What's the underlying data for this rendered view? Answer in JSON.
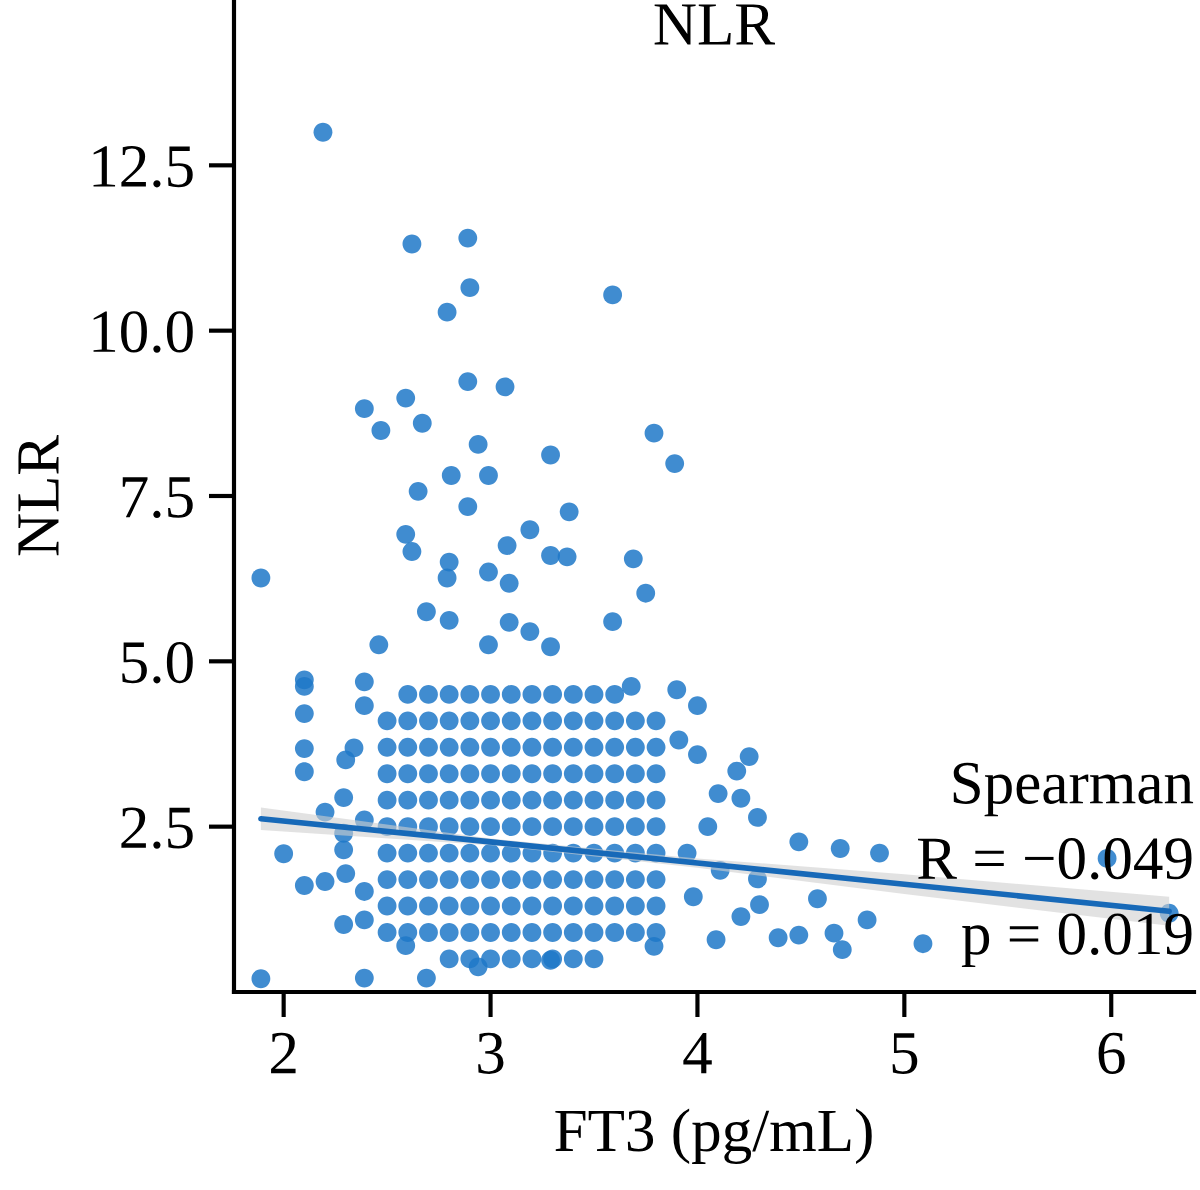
{
  "chart_data": {
    "type": "scatter",
    "title": "NLR",
    "xlabel": "FT3 (pg/mL)",
    "ylabel": "NLR",
    "xlim": [
      1.76,
      6.4
    ],
    "ylim": [
      0,
      15
    ],
    "xticks": [
      2,
      3,
      4,
      5,
      6
    ],
    "yticks": [
      2.5,
      {
        "value": 5,
        "label": "5.0"
      },
      7.5,
      {
        "value": 10,
        "label": "10.0"
      },
      12.5
    ],
    "annotations": [
      "Spearman",
      "R = −0.049",
      "p = 0.019"
    ],
    "series": [
      {
        "color": "#1f78c8",
        "marker": "circle",
        "x": [
          2.8,
          2.9,
          3.0,
          3.1,
          3.2,
          3.3,
          3.4,
          3.5,
          2.5,
          2.6,
          2.7,
          2.8,
          2.9,
          3.0,
          3.1,
          3.2,
          3.3,
          3.4,
          3.5,
          3.6,
          3.7,
          3.8,
          2.5,
          2.6,
          2.7,
          2.8,
          2.9,
          3.0,
          3.1,
          3.2,
          3.3,
          3.4,
          3.5,
          3.6,
          3.7,
          3.8,
          2.5,
          2.6,
          2.7,
          2.8,
          2.9,
          3.0,
          3.1,
          3.2,
          3.3,
          3.4,
          3.5,
          3.6,
          3.7,
          3.8,
          2.5,
          2.6,
          2.7,
          2.8,
          2.9,
          3.0,
          3.1,
          3.2,
          3.3,
          3.4,
          3.5,
          3.6,
          3.7,
          3.8,
          2.5,
          2.6,
          2.7,
          2.8,
          2.9,
          3.0,
          3.1,
          3.2,
          3.3,
          3.4,
          3.5,
          3.6,
          3.7,
          3.8,
          2.5,
          2.6,
          2.7,
          2.8,
          2.9,
          3.0,
          3.1,
          3.2,
          3.3,
          3.4,
          3.5,
          3.6,
          3.7,
          3.8,
          2.5,
          2.6,
          2.7,
          2.8,
          2.9,
          3.0,
          3.1,
          3.2,
          3.3,
          3.4,
          3.5,
          3.6,
          3.7,
          3.8,
          2.5,
          2.6,
          2.7,
          2.8,
          2.9,
          3.0,
          3.1,
          3.2,
          3.3,
          3.4,
          3.5,
          3.6,
          3.7,
          3.8,
          2.5,
          2.6,
          2.7,
          2.8,
          2.9,
          3.0,
          3.1,
          3.2,
          3.3,
          3.4,
          3.5,
          3.6,
          3.7,
          3.8,
          2.6,
          2.7,
          2.8,
          2.9,
          3.0,
          3.1,
          3.2,
          3.3,
          3.4,
          3.5,
          3.6,
          2.19,
          2.62,
          2.89,
          2.9,
          2.79,
          3.59,
          2.89,
          3.07,
          2.39,
          2.59,
          2.47,
          2.67,
          2.94,
          3.29,
          3.79,
          3.89,
          2.65,
          2.81,
          2.99,
          2.89,
          3.38,
          3.19,
          2.59,
          2.62,
          3.08,
          3.29,
          3.37,
          3.69,
          2.8,
          2.79,
          2.99,
          3.09,
          1.89,
          3.75,
          3.59,
          2.46,
          2.69,
          2.8,
          3.09,
          3.19,
          3.29,
          2.99,
          2.1,
          2.1,
          2.1,
          2.1,
          2.1,
          2.3,
          2.34,
          2.2,
          2.29,
          2.0,
          2.1,
          2.2,
          2.3,
          2.29,
          2.39,
          1.89,
          2.39,
          2.69,
          2.39,
          2.39,
          2.29,
          2.29,
          2.39,
          2.94,
          3.68,
          3.9,
          4.0,
          3.91,
          4.0,
          4.25,
          4.19,
          4.21,
          4.29,
          4.49,
          4.69,
          4.88,
          5.98,
          4.58,
          4.3,
          4.21,
          4.39,
          4.49,
          4.66,
          4.7,
          4.82,
          5.09,
          4.09,
          6.28,
          3.98,
          4.11,
          4.29,
          4.05,
          4.1,
          3.95,
          3.29,
          2.59,
          3.79,
          2.39
        ],
        "values": [
          0.5,
          0.5,
          0.5,
          0.5,
          0.5,
          0.5,
          0.5,
          0.5,
          0.9,
          0.9,
          0.9,
          0.9,
          0.9,
          0.9,
          0.9,
          0.9,
          0.9,
          0.9,
          0.9,
          0.9,
          0.9,
          0.9,
          1.3,
          1.3,
          1.3,
          1.3,
          1.3,
          1.3,
          1.3,
          1.3,
          1.3,
          1.3,
          1.3,
          1.3,
          1.3,
          1.3,
          1.7,
          1.7,
          1.7,
          1.7,
          1.7,
          1.7,
          1.7,
          1.7,
          1.7,
          1.7,
          1.7,
          1.7,
          1.7,
          1.7,
          2.1,
          2.1,
          2.1,
          2.1,
          2.1,
          2.1,
          2.1,
          2.1,
          2.1,
          2.1,
          2.1,
          2.1,
          2.1,
          2.1,
          2.5,
          2.5,
          2.5,
          2.5,
          2.5,
          2.5,
          2.5,
          2.5,
          2.5,
          2.5,
          2.5,
          2.5,
          2.5,
          2.5,
          2.9,
          2.9,
          2.9,
          2.9,
          2.9,
          2.9,
          2.9,
          2.9,
          2.9,
          2.9,
          2.9,
          2.9,
          2.9,
          2.9,
          3.3,
          3.3,
          3.3,
          3.3,
          3.3,
          3.3,
          3.3,
          3.3,
          3.3,
          3.3,
          3.3,
          3.3,
          3.3,
          3.3,
          3.7,
          3.7,
          3.7,
          3.7,
          3.7,
          3.7,
          3.7,
          3.7,
          3.7,
          3.7,
          3.7,
          3.7,
          3.7,
          3.7,
          4.1,
          4.1,
          4.1,
          4.1,
          4.1,
          4.1,
          4.1,
          4.1,
          4.1,
          4.1,
          4.1,
          4.1,
          4.1,
          4.1,
          4.5,
          4.5,
          4.5,
          4.5,
          4.5,
          4.5,
          4.5,
          4.5,
          4.5,
          4.5,
          4.5,
          13.0,
          11.31,
          11.4,
          10.65,
          10.28,
          10.54,
          9.23,
          9.15,
          8.82,
          8.98,
          8.49,
          8.6,
          8.28,
          8.12,
          8.45,
          7.99,
          7.57,
          7.81,
          7.81,
          7.34,
          7.26,
          6.99,
          6.92,
          6.66,
          6.75,
          6.6,
          6.58,
          6.55,
          6.5,
          6.26,
          6.35,
          6.18,
          6.26,
          6.03,
          5.6,
          5.25,
          5.75,
          5.62,
          5.59,
          5.45,
          5.22,
          5.25,
          4.72,
          4.62,
          4.21,
          3.68,
          3.33,
          3.51,
          3.69,
          2.72,
          2.94,
          2.09,
          1.61,
          1.67,
          1.79,
          1.02,
          1.09,
          0.2,
          0.21,
          0.21,
          4.69,
          4.33,
          2.4,
          2.15,
          1.52,
          0.38,
          4.62,
          4.57,
          4.33,
          3.81,
          3.59,
          3.56,
          3.34,
          2.93,
          2.64,
          2.27,
          2.17,
          2.1,
          2.02,
          1.41,
          1.32,
          1.14,
          0.82,
          0.86,
          0.89,
          0.64,
          1.09,
          0.73,
          0.79,
          1.19,
          1.44,
          1.84,
          1.71,
          2.5,
          3.0,
          2.1,
          0.48,
          0.7,
          0.69,
          2.6
        ]
      },
      {
        "type": "line",
        "color": "#1769b8",
        "marker": "none",
        "x": [
          1.89,
          3.0,
          4.0,
          5.0,
          6.28
        ],
        "values": [
          2.62,
          2.27,
          1.95,
          1.63,
          1.22
        ],
        "lower": [
          2.45,
          2.22,
          1.88,
          1.48,
          1.0
        ],
        "upper": [
          2.79,
          2.32,
          2.02,
          1.78,
          1.44
        ]
      }
    ]
  }
}
